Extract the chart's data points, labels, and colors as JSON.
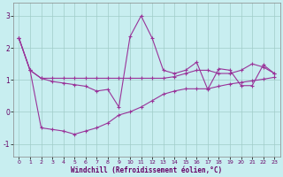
{
  "xlabel": "Windchill (Refroidissement éolien,°C)",
  "line_color": "#993399",
  "bg_color": "#c8eef0",
  "grid_color": "#a0ccc8",
  "xlim": [
    -0.5,
    23.5
  ],
  "ylim": [
    -1.4,
    3.4
  ],
  "yticks": [
    -1,
    0,
    1,
    2,
    3
  ],
  "xticks": [
    0,
    1,
    2,
    3,
    4,
    5,
    6,
    7,
    8,
    9,
    10,
    11,
    12,
    13,
    14,
    15,
    16,
    17,
    18,
    19,
    20,
    21,
    22,
    23
  ],
  "line1_x": [
    0,
    1,
    2,
    3,
    4,
    5,
    6,
    7,
    8,
    9,
    10,
    11,
    12,
    13,
    14,
    15,
    16,
    17,
    18,
    19,
    20,
    21,
    22,
    23
  ],
  "line1_y": [
    2.3,
    1.3,
    1.05,
    1.05,
    1.05,
    1.05,
    1.05,
    1.05,
    1.05,
    1.05,
    1.05,
    1.05,
    1.05,
    1.05,
    1.1,
    1.2,
    1.3,
    1.3,
    1.2,
    1.2,
    1.3,
    1.5,
    1.4,
    1.2
  ],
  "line2_x": [
    0,
    1,
    2,
    3,
    4,
    5,
    6,
    7,
    8,
    9,
    10,
    11,
    12,
    13,
    14,
    15,
    16,
    17,
    18,
    19,
    20,
    21,
    22,
    23
  ],
  "line2_y": [
    2.3,
    1.3,
    1.05,
    0.95,
    0.9,
    0.85,
    0.8,
    0.65,
    0.7,
    0.15,
    2.35,
    3.0,
    2.3,
    1.3,
    1.2,
    1.3,
    1.55,
    0.7,
    1.35,
    1.3,
    0.82,
    0.82,
    1.47,
    1.2
  ],
  "line3_x": [
    0,
    1,
    2,
    3,
    4,
    5,
    6,
    7,
    8,
    9,
    10,
    11,
    12,
    13,
    14,
    15,
    16,
    17,
    18,
    19,
    20,
    21,
    22,
    23
  ],
  "line3_y": [
    2.3,
    1.3,
    -0.5,
    -0.55,
    -0.6,
    -0.7,
    -0.6,
    -0.5,
    -0.35,
    -0.1,
    0.0,
    0.15,
    0.35,
    0.55,
    0.65,
    0.72,
    0.72,
    0.72,
    0.8,
    0.87,
    0.92,
    0.97,
    1.02,
    1.08
  ],
  "marker": "+"
}
